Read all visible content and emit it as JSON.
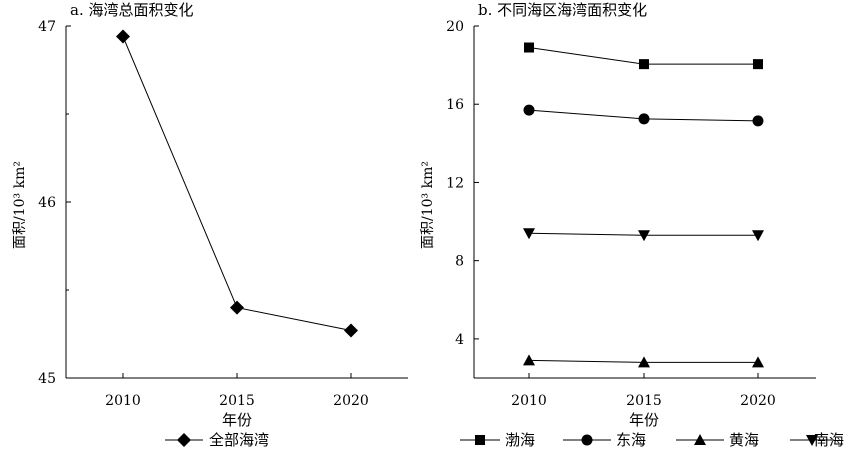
{
  "chart_data": [
    {
      "type": "line",
      "title": "a. 海湾总面积变化",
      "xlabel": "年份",
      "ylabel": "面积/10³ km²",
      "categories": [
        "2010",
        "2015",
        "2020"
      ],
      "ylim": [
        45,
        47
      ],
      "yticks": [
        45,
        46,
        47
      ],
      "grid": false,
      "legend_position": "bottom",
      "series": [
        {
          "name": "全部海湾",
          "marker": "diamond",
          "values": [
            46.94,
            45.4,
            45.27
          ]
        }
      ]
    },
    {
      "type": "line",
      "title": "b. 不同海区海湾面积变化",
      "xlabel": "年份",
      "ylabel": "面积/10³ km²",
      "categories": [
        "2010",
        "2015",
        "2020"
      ],
      "ylim": [
        2,
        20
      ],
      "yticks": [
        4,
        8,
        12,
        16,
        20
      ],
      "grid": false,
      "legend_position": "bottom",
      "series": [
        {
          "name": "渤海",
          "marker": "square",
          "values": [
            18.9,
            18.05,
            18.05
          ]
        },
        {
          "name": "东海",
          "marker": "circle",
          "values": [
            15.7,
            15.25,
            15.15
          ]
        },
        {
          "name": "黄海",
          "marker": "triangle-up",
          "values": [
            2.9,
            2.8,
            2.8
          ]
        },
        {
          "name": "南海",
          "marker": "triangle-down",
          "values": [
            9.4,
            9.3,
            9.3
          ]
        }
      ]
    }
  ]
}
